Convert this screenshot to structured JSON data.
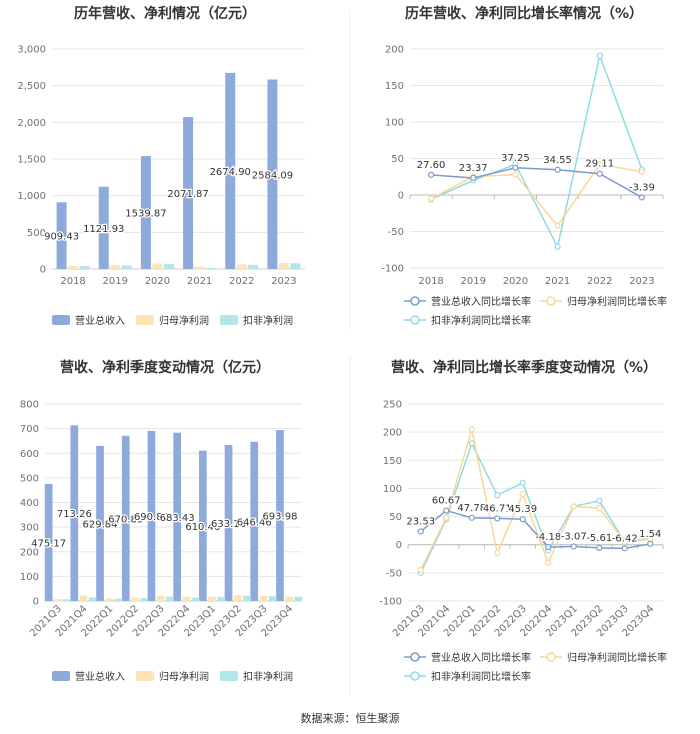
{
  "colors": {
    "revenue": "#8eaadb",
    "net_profit": "#fde3b6",
    "deducted_profit": "#b2e6ea",
    "revenue_line": "#7a9bd0",
    "net_line": "#fbd699",
    "deducted_line": "#8fdbe0",
    "grid": "#e6e6e6",
    "divider": "#eeeeee"
  },
  "source": "数据来源：恒生聚源",
  "chart_data": [
    {
      "type": "bar",
      "title": "历年营收、净利情况（亿元）",
      "categories": [
        "2018",
        "2019",
        "2020",
        "2021",
        "2022",
        "2023"
      ],
      "ylim": [
        0,
        3000
      ],
      "yticks": [
        "0",
        "500",
        "1,000",
        "1,500",
        "2,000",
        "2,500",
        "3,000"
      ],
      "ytick_values": [
        0,
        500,
        1000,
        1500,
        2000,
        2500,
        3000
      ],
      "series": [
        {
          "name": "营业总收入",
          "values": [
            909.43,
            1121.93,
            1539.87,
            2071.87,
            2674.9,
            2584.09
          ],
          "labels": [
            "909.43",
            "1121.93",
            "1539.87",
            "2071.87",
            "2674.90",
            "2584.09"
          ]
        },
        {
          "name": "归母净利润",
          "values": [
            42,
            52,
            75,
            35,
            62,
            81
          ]
        },
        {
          "name": "扣非净利润",
          "values": [
            38,
            50,
            70,
            15,
            58,
            78
          ]
        }
      ]
    },
    {
      "type": "line",
      "title": "历年营收、净利同比增长率情况（%）",
      "categories": [
        "2018",
        "2019",
        "2020",
        "2021",
        "2022",
        "2023"
      ],
      "ylim": [
        -100,
        200
      ],
      "yticks": [
        "-100",
        "-50",
        "0",
        "50",
        "100",
        "150",
        "200"
      ],
      "ytick_values": [
        -100,
        -50,
        0,
        50,
        100,
        150,
        200
      ],
      "series": [
        {
          "name": "营业总收入同比增长率",
          "values": [
            27.6,
            23.37,
            37.25,
            34.55,
            29.11,
            -3.39
          ],
          "labels": [
            "27.60",
            "23.37",
            "37.25",
            "34.55",
            "29.11",
            "-3.39"
          ]
        },
        {
          "name": "归母净利润同比增长率",
          "values": [
            -5,
            25,
            28,
            -42,
            42,
            32
          ]
        },
        {
          "name": "扣非净利润同比增长率",
          "values": [
            -6,
            20,
            42,
            -71,
            191,
            35
          ]
        }
      ]
    },
    {
      "type": "bar",
      "title": "营收、净利季度变动情况（亿元）",
      "categories": [
        "2021Q3",
        "2021Q4",
        "2022Q1",
        "2022Q2",
        "2022Q3",
        "2022Q4",
        "2023Q1",
        "2023Q2",
        "2023Q3",
        "2023Q4"
      ],
      "ylim": [
        0,
        800
      ],
      "yticks": [
        "0",
        "100",
        "200",
        "300",
        "400",
        "500",
        "600",
        "700",
        "800"
      ],
      "ytick_values": [
        0,
        100,
        200,
        300,
        400,
        500,
        600,
        700,
        800
      ],
      "series": [
        {
          "name": "营业总收入",
          "values": [
            475.17,
            713.26,
            629.84,
            670.89,
            690.86,
            683.43,
            610.46,
            633.16,
            646.46,
            693.98
          ],
          "labels": [
            "475.17",
            "713.26",
            "629.84",
            "670.89",
            "690.86",
            "683.43",
            "610.46",
            "633.16",
            "646.46",
            "693.98"
          ]
        },
        {
          "name": "归母净利润",
          "values": [
            8,
            22,
            10,
            14,
            20,
            18,
            18,
            24,
            20,
            18
          ]
        },
        {
          "name": "扣非净利润",
          "values": [
            7,
            15,
            9,
            12,
            18,
            14,
            17,
            22,
            19,
            17
          ]
        }
      ]
    },
    {
      "type": "line",
      "title": "营收、净利同比增长率季度变动情况（%）",
      "categories": [
        "2021Q3",
        "2021Q4",
        "2022Q1",
        "2022Q2",
        "2022Q3",
        "2022Q4",
        "2023Q1",
        "2023Q2",
        "2023Q3",
        "2023Q4"
      ],
      "ylim": [
        -100,
        250
      ],
      "yticks": [
        "-100",
        "-50",
        "0",
        "50",
        "100",
        "150",
        "200",
        "250"
      ],
      "ytick_values": [
        -100,
        -50,
        0,
        50,
        100,
        150,
        200,
        250
      ],
      "series": [
        {
          "name": "营业总收入同比增长率",
          "values": [
            23.53,
            60.67,
            47.78,
            46.71,
            45.39,
            -4.18,
            -3.07,
            -5.61,
            -6.42,
            1.54
          ],
          "labels": [
            "23.53",
            "60.67",
            "47.78",
            "46.71",
            "45.39",
            "-4.18",
            "-3.07",
            "-5.61",
            "-6.42",
            "1.54"
          ]
        },
        {
          "name": "归母净利润同比增长率",
          "values": [
            -45,
            48,
            205,
            -15,
            90,
            -32,
            68,
            65,
            5,
            10
          ]
        },
        {
          "name": "扣非净利润同比增长率",
          "values": [
            -50,
            45,
            180,
            88,
            110,
            -10,
            68,
            78,
            5,
            12
          ]
        }
      ]
    }
  ]
}
